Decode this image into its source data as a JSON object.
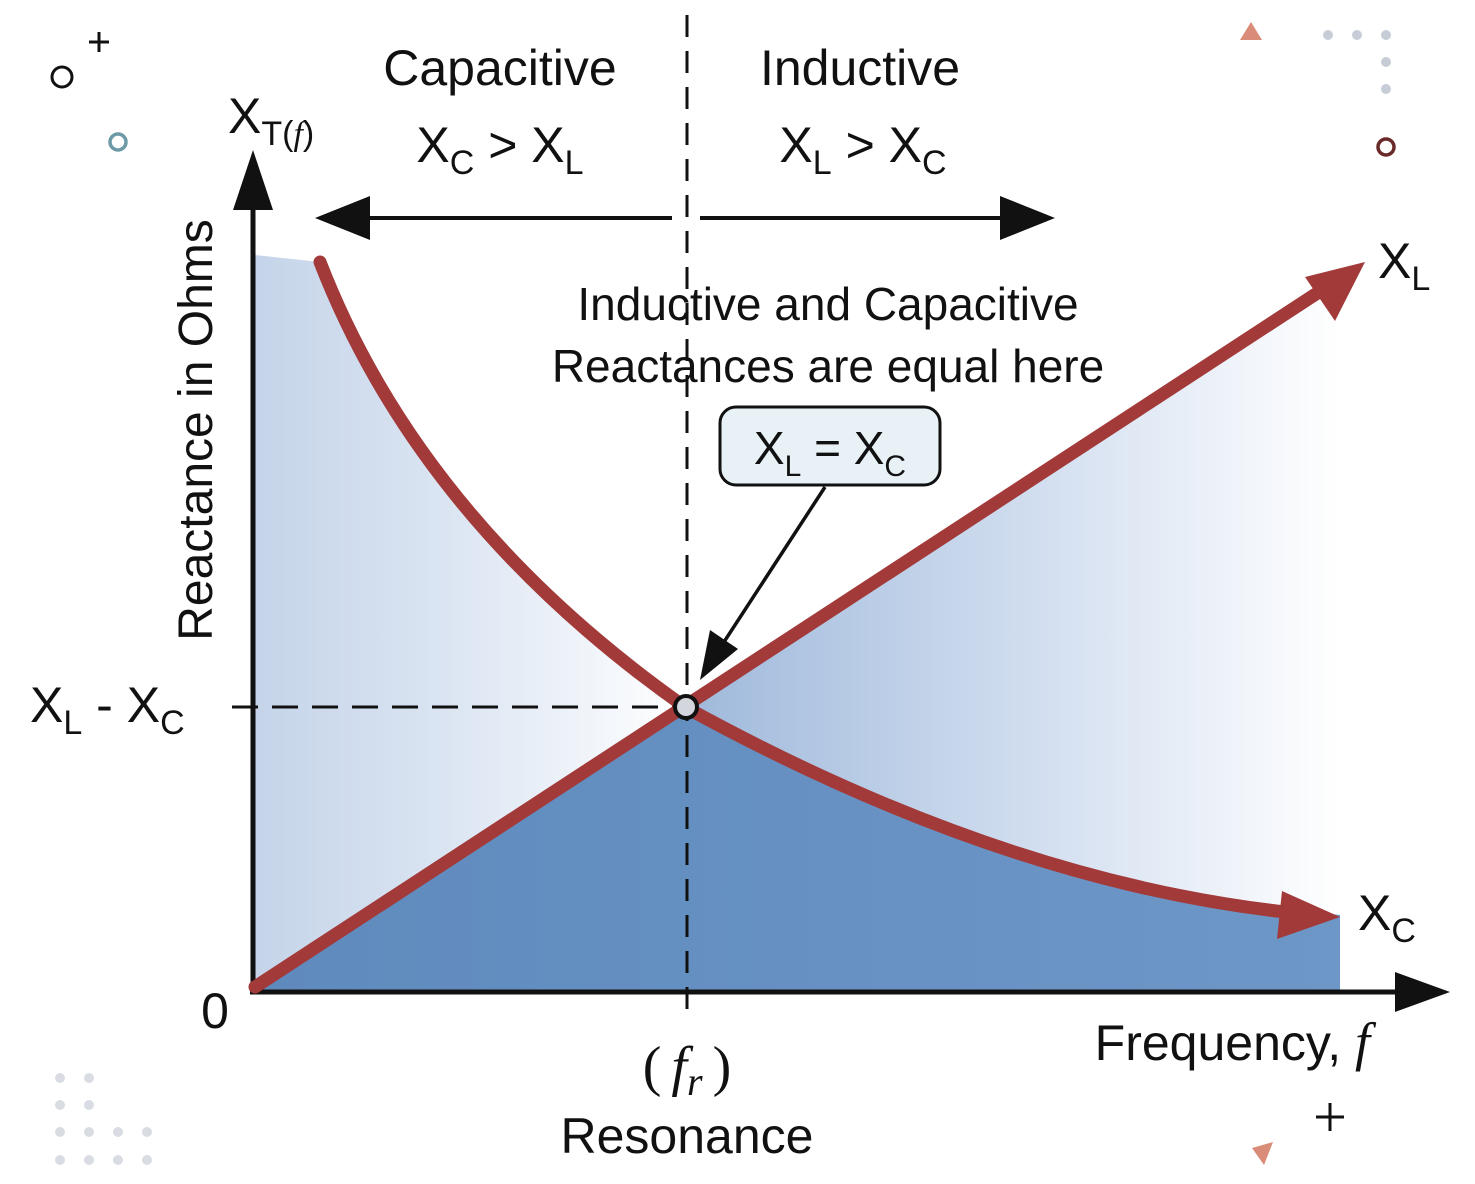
{
  "y_axis": {
    "title_main": "X",
    "title_sub": "T(",
    "title_var": "f",
    "title_close": ")",
    "label": "Reactance in Ohms",
    "zero": "0",
    "crossing_main1": "X",
    "crossing_sub1": "L",
    "crossing_mid": " - X",
    "crossing_sub2": "C"
  },
  "x_axis": {
    "label": "Frequency, ",
    "label_var": "f",
    "resonance_open": "(",
    "resonance_var": "f",
    "resonance_sub": "r",
    "resonance_close": ")",
    "resonance_label": "Resonance"
  },
  "regions": {
    "left_title": "Capacitive",
    "left_rel_a": "X",
    "left_rel_a_sub": "C",
    "left_rel_op": " > X",
    "left_rel_b_sub": "L",
    "right_title": "Inductive",
    "right_rel_a": "X",
    "right_rel_a_sub": "L",
    "right_rel_op": " > X",
    "right_rel_b_sub": "C"
  },
  "annotation": {
    "line1": "Inductive and Capacitive",
    "line2": "Reactances are equal here",
    "box_a": "X",
    "box_a_sub": "L",
    "box_op": " = X",
    "box_b_sub": "C"
  },
  "curves": {
    "xl_main": "X",
    "xl_sub": "L",
    "xc_main": "X",
    "xc_sub": "C"
  },
  "colors": {
    "curve": "#a33a3a",
    "fill_dark": "#6a93c2",
    "fill_light": "#e9eff8",
    "axis": "#111111"
  }
}
